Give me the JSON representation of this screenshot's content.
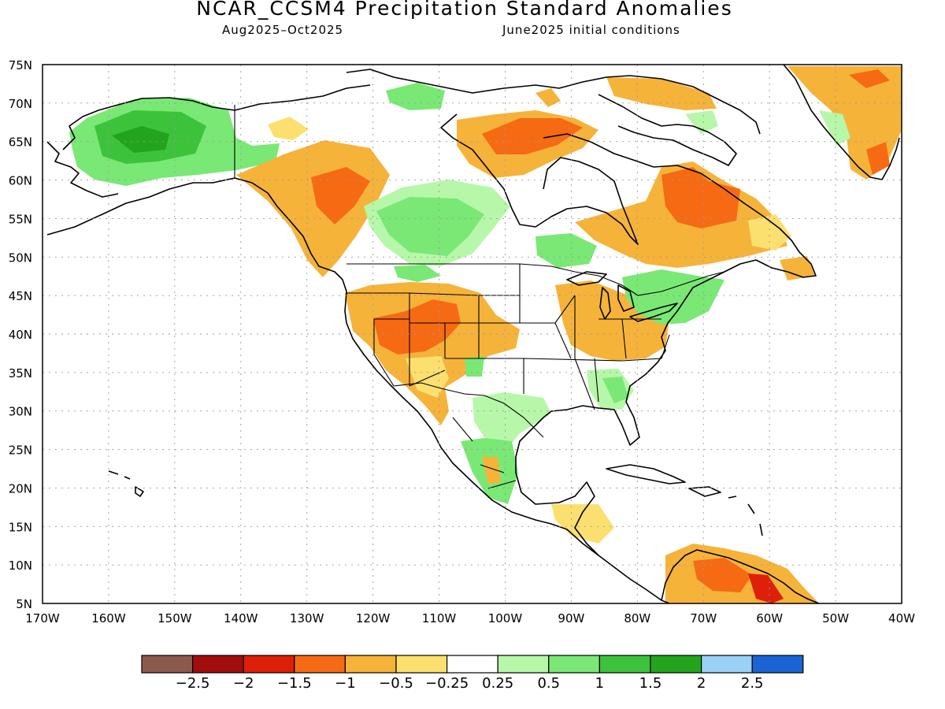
{
  "header": {
    "title": "NCAR_CCSM4 Precipitation Standard Anomalies",
    "subtitle_left": "Aug2025–Oct2025",
    "subtitle_right": "June2025 initial conditions"
  },
  "map": {
    "lat_labels": [
      "75N",
      "70N",
      "65N",
      "60N",
      "55N",
      "50N",
      "45N",
      "40N",
      "35N",
      "30N",
      "25N",
      "20N",
      "15N",
      "10N",
      "5N"
    ],
    "lon_labels": [
      "170W",
      "160W",
      "150W",
      "140W",
      "130W",
      "120W",
      "110W",
      "100W",
      "90W",
      "80W",
      "70W",
      "60W",
      "50W",
      "40W"
    ],
    "region": "North America",
    "gridlines": "dotted"
  },
  "colorbar": {
    "colors": [
      "#8b5a4c",
      "#a30d0d",
      "#de1f0a",
      "#f66a14",
      "#f6b33a",
      "#fbe070",
      "#ffffff",
      "#b7f7a9",
      "#7ae875",
      "#3dc33b",
      "#22a51c",
      "#9bd1f7",
      "#1a64d6"
    ],
    "tick_labels": [
      "−2.5",
      "−2",
      "−1.5",
      "−1",
      "−0.5",
      "−0.25",
      "0.25",
      "0.5",
      "1",
      "1.5",
      "2",
      "2.5"
    ]
  }
}
